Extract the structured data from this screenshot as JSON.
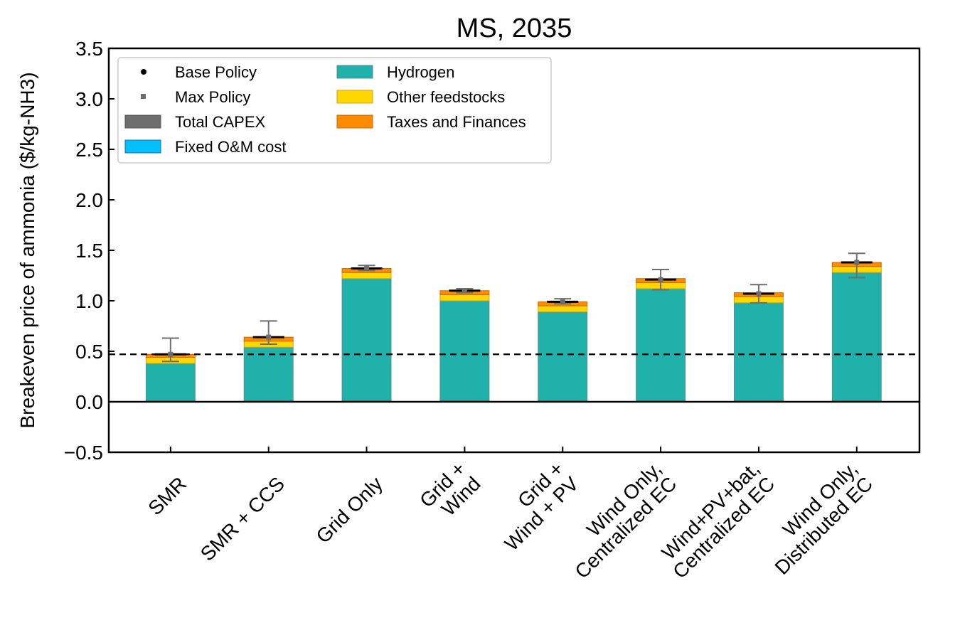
{
  "chart_data": {
    "type": "bar",
    "stacked": true,
    "title": "MS, 2035",
    "xlabel": "",
    "ylabel": "Breakeven price of ammonia ($/kg-NH3)",
    "ylim": [
      -0.5,
      3.5
    ],
    "yticks": [
      -0.5,
      0.0,
      0.5,
      1.0,
      1.5,
      2.0,
      2.5,
      3.0,
      3.5
    ],
    "ytick_labels": [
      "−0.5",
      "0.0",
      "0.5",
      "1.0",
      "1.5",
      "2.0",
      "2.5",
      "3.0",
      "3.5"
    ],
    "grid": false,
    "legend_placement": "top-left",
    "categories": [
      [
        "SMR"
      ],
      [
        "SMR + CCS"
      ],
      [
        "Grid Only"
      ],
      [
        "Grid +",
        "Wind"
      ],
      [
        "Grid +",
        "Wind + PV"
      ],
      [
        "Wind Only,",
        "Centralized EC"
      ],
      [
        "Wind+PV+bat,",
        "Centralized EC"
      ],
      [
        "Wind Only,",
        "Distributed EC"
      ]
    ],
    "series": [
      {
        "name": "Total CAPEX",
        "color": "#6e6e6e",
        "edge": "#555555",
        "values": [
          0.0,
          0.0,
          0.0,
          0.0,
          0.0,
          0.0,
          0.0,
          0.0
        ]
      },
      {
        "name": "Fixed O&M cost",
        "color": "#00bfff",
        "edge": "#1f6fa8",
        "values": [
          0.01,
          0.01,
          0.01,
          0.01,
          0.01,
          0.01,
          0.01,
          0.01
        ]
      },
      {
        "name": "Hydrogen",
        "color": "#20b2aa",
        "edge": "#5a8f8c",
        "values": [
          0.37,
          0.53,
          1.21,
          0.99,
          0.88,
          1.11,
          0.97,
          1.27
        ]
      },
      {
        "name": "Other feedstocks",
        "color": "#ffd700",
        "edge": "#d4a017",
        "values": [
          0.06,
          0.06,
          0.06,
          0.06,
          0.06,
          0.06,
          0.06,
          0.06
        ]
      },
      {
        "name": "Taxes and Finances",
        "color": "#ff8c00",
        "edge": "#c76a00",
        "values": [
          0.03,
          0.04,
          0.04,
          0.04,
          0.04,
          0.04,
          0.04,
          0.04
        ]
      }
    ],
    "base_policy": {
      "name": "Base Policy",
      "color": "#000000",
      "values": [
        0.47,
        0.64,
        1.32,
        1.1,
        0.99,
        1.21,
        1.07,
        1.38
      ]
    },
    "max_policy": {
      "name": "Max Policy",
      "color": "#6e6e6e",
      "values": [
        0.47,
        0.64,
        1.32,
        1.1,
        0.99,
        1.21,
        1.07,
        1.38
      ],
      "err_low": [
        0.4,
        0.57,
        1.3,
        1.08,
        0.97,
        1.11,
        0.98,
        1.23
      ],
      "err_high": [
        0.63,
        0.8,
        1.35,
        1.12,
        1.02,
        1.31,
        1.16,
        1.47
      ]
    },
    "reference_line": {
      "value": 0.47,
      "style": "dashed",
      "color": "#000000"
    },
    "zero_line": {
      "value": 0.0,
      "color": "#000000"
    }
  }
}
